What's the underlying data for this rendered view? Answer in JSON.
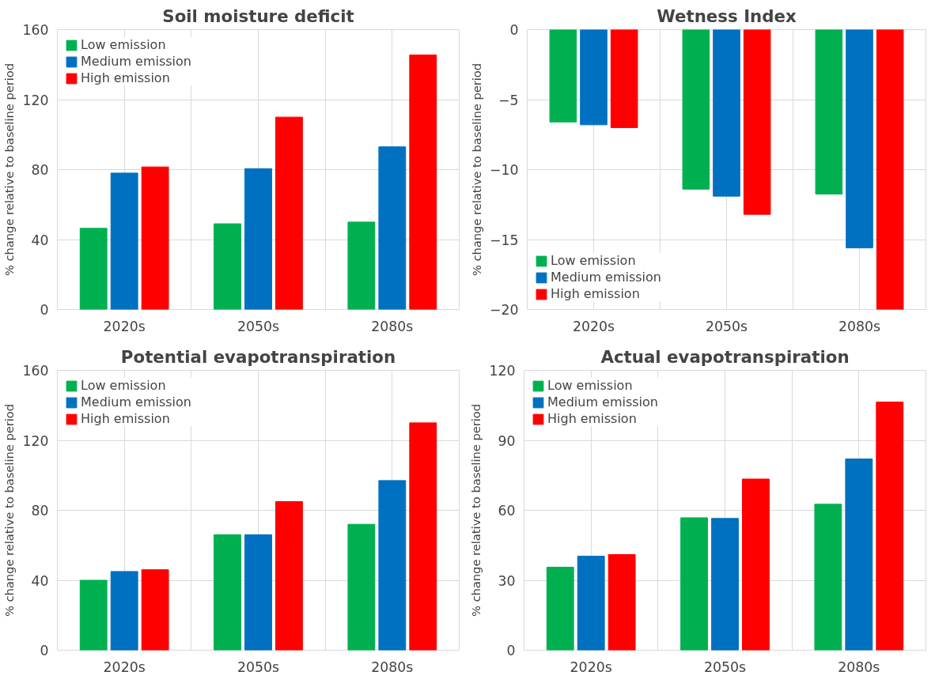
{
  "chart_data": [
    {
      "type": "bar",
      "title": "Soil moisture deficit",
      "ylabel": "% change relative to baseline period",
      "categories": [
        "2020s",
        "2050s",
        "2080s"
      ],
      "ylim": [
        0,
        160
      ],
      "yticks": [
        0,
        40,
        80,
        120,
        160
      ],
      "grid": true,
      "legend": "top left",
      "series": [
        {
          "name": "Low emission",
          "color": "#00b050",
          "values": [
            46.4,
            49,
            50
          ]
        },
        {
          "name": "Medium emission",
          "color": "#0070c0",
          "values": [
            78,
            80.5,
            93
          ]
        },
        {
          "name": "High emission",
          "color": "#ff0000",
          "values": [
            81.5,
            110,
            145.5
          ]
        }
      ]
    },
    {
      "type": "bar",
      "title": "Wetness Index",
      "ylabel": "% change relative to baseline period",
      "categories": [
        "2020s",
        "2050s",
        "2080s"
      ],
      "ylim": [
        -20,
        0
      ],
      "yticks": [
        -20,
        -15,
        -10,
        -5,
        0
      ],
      "grid": true,
      "legend": "bottom left",
      "series": [
        {
          "name": "Low emission",
          "color": "#00b050",
          "values": [
            -6.6,
            -11.4,
            -11.75
          ]
        },
        {
          "name": "Medium emission",
          "color": "#0070c0",
          "values": [
            -6.8,
            -11.9,
            -15.6
          ]
        },
        {
          "name": "High emission",
          "color": "#ff0000",
          "values": [
            -7.0,
            -13.2,
            -20
          ]
        }
      ]
    },
    {
      "type": "bar",
      "title": "Potential evapotranspiration",
      "ylabel": "% change relative to baseline period",
      "categories": [
        "2020s",
        "2050s",
        "2080s"
      ],
      "ylim": [
        0,
        160
      ],
      "yticks": [
        0,
        40,
        80,
        120,
        160
      ],
      "grid": true,
      "legend": "top left",
      "series": [
        {
          "name": "Low emission",
          "color": "#00b050",
          "values": [
            40,
            66,
            72
          ]
        },
        {
          "name": "Medium emission",
          "color": "#0070c0",
          "values": [
            45,
            66,
            97
          ]
        },
        {
          "name": "High emission",
          "color": "#ff0000",
          "values": [
            46,
            85,
            130
          ]
        }
      ]
    },
    {
      "type": "bar",
      "title": "Actual evapotranspiration",
      "ylabel": "% change relative to baseline period",
      "categories": [
        "2020s",
        "2050s",
        "2080s"
      ],
      "ylim": [
        0,
        120
      ],
      "yticks": [
        0,
        30,
        60,
        90,
        120
      ],
      "grid": true,
      "legend": "top left",
      "series": [
        {
          "name": "Low emission",
          "color": "#00b050",
          "values": [
            35.6,
            56.8,
            62.6
          ]
        },
        {
          "name": "Medium emission",
          "color": "#0070c0",
          "values": [
            40.3,
            56.5,
            82
          ]
        },
        {
          "name": "High emission",
          "color": "#ff0000",
          "values": [
            41,
            73.4,
            106.4
          ]
        }
      ]
    }
  ]
}
